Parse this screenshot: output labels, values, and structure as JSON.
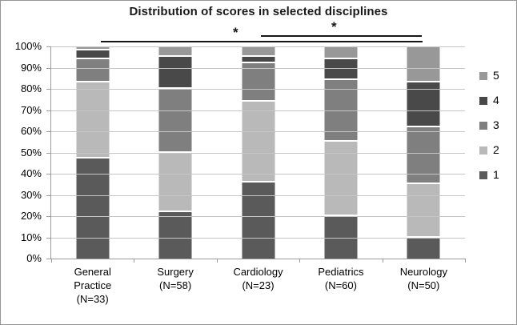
{
  "title": "Distribution of scores in selected disciplines",
  "chart_data": {
    "type": "bar",
    "stacked": true,
    "percent": true,
    "title": "Distribution of scores in selected disciplines",
    "categories": [
      "General Practice (N=33)",
      "Surgery (N=58)",
      "Cardiology (N=23)",
      "Pediatrics (N=60)",
      "Neurology (N=50)"
    ],
    "series": [
      {
        "name": "1",
        "color": "#5a5a5a",
        "values": [
          47,
          22,
          36,
          20,
          10
        ]
      },
      {
        "name": "2",
        "color": "#b9b9b9",
        "values": [
          36,
          28,
          38,
          35,
          25
        ]
      },
      {
        "name": "3",
        "color": "#7f7f7f",
        "values": [
          11,
          30,
          18,
          29,
          27
        ]
      },
      {
        "name": "4",
        "color": "#494949",
        "values": [
          4,
          15,
          3,
          10,
          21
        ]
      },
      {
        "name": "5",
        "color": "#989898",
        "values": [
          2,
          5,
          5,
          6,
          17
        ]
      }
    ],
    "ylim": [
      0,
      100
    ],
    "ytick_step": 10,
    "ytick_suffix": "%",
    "grid": true,
    "legend_position": "right",
    "legend_order": [
      "5",
      "4",
      "3",
      "2",
      "1"
    ],
    "annotations": [
      {
        "type": "significance",
        "label": "*",
        "from": "General Practice (N=33)",
        "to": "Neurology (N=50)"
      },
      {
        "type": "significance",
        "label": "*",
        "from": "Cardiology (N=23)",
        "to": "Neurology (N=50)"
      }
    ]
  },
  "colors": {
    "background": "#ffffff",
    "border": "#969696",
    "gridline": "#c6c6c6",
    "axis": "#9b9b9b",
    "text": "#000000",
    "annotation": "#151515"
  }
}
